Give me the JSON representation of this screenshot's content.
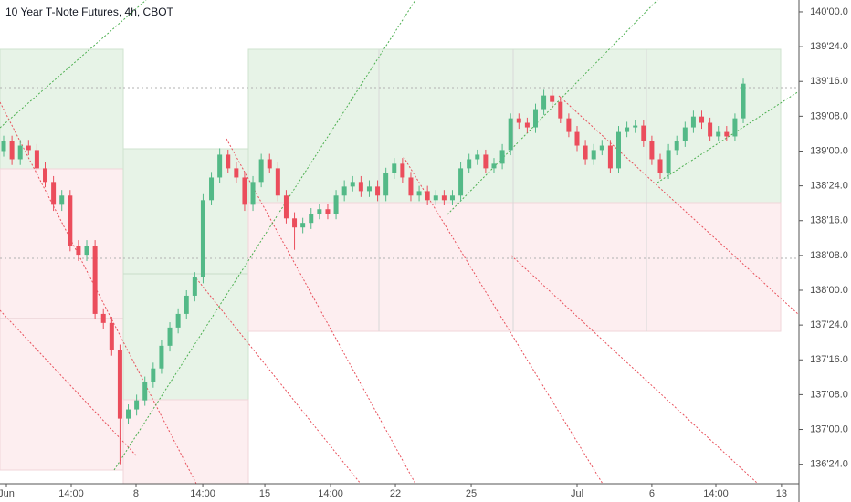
{
  "chart_data": {
    "type": "candlestick",
    "title": "10 Year T-Note Futures, 4h, CBOT",
    "up_color": "#53b987",
    "down_color": "#eb4d5c",
    "grid": false,
    "xlim": [
      -0.44,
      95.7
    ],
    "xticks": [
      {
        "value": 0.33,
        "label": "Jun"
      },
      {
        "value": 8.13,
        "label": "14:00"
      },
      {
        "value": 15.93,
        "label": "8"
      },
      {
        "value": 23.96,
        "label": "14:00"
      },
      {
        "value": 31.43,
        "label": "15"
      },
      {
        "value": 39.34,
        "label": "14:00"
      },
      {
        "value": 47.14,
        "label": "22"
      },
      {
        "value": 56.26,
        "label": "25"
      },
      {
        "value": 69.0,
        "label": "Jul"
      },
      {
        "value": 78.0,
        "label": "6"
      },
      {
        "value": 85.7,
        "label": "14:00"
      },
      {
        "value": 93.6,
        "label": "13"
      }
    ],
    "ylim": [
      136.61,
      140.085
    ],
    "yticks": [
      {
        "value": 140.0,
        "label": "140'00.0"
      },
      {
        "value": 139.75,
        "label": "139'24.0"
      },
      {
        "value": 139.5,
        "label": "139'16.0"
      },
      {
        "value": 139.25,
        "label": "139'08.0"
      },
      {
        "value": 139.0,
        "label": "139'00.0"
      },
      {
        "value": 138.75,
        "label": "138'24.0"
      },
      {
        "value": 138.5,
        "label": "138'16.0"
      },
      {
        "value": 138.25,
        "label": "138'08.0"
      },
      {
        "value": 138.0,
        "label": "138'00.0"
      },
      {
        "value": 137.75,
        "label": "137'24.0"
      },
      {
        "value": 137.5,
        "label": "137'16.0"
      },
      {
        "value": 137.25,
        "label": "137'08.0"
      },
      {
        "value": 137.0,
        "label": "137'00.0"
      },
      {
        "value": 136.75,
        "label": "136'24.0"
      }
    ],
    "open": [
      139.0,
      139.072,
      138.941,
      139.039,
      139.007,
      138.876,
      138.778,
      138.614,
      138.68,
      138.32,
      138.255,
      138.32,
      137.83,
      137.765,
      137.569,
      137.078,
      137.144,
      137.209,
      137.34,
      137.438,
      137.601,
      137.732,
      137.83,
      137.961,
      138.092,
      138.647,
      138.81,
      138.974,
      138.876,
      138.81,
      138.614,
      138.778,
      138.941,
      138.876,
      138.68,
      138.516,
      138.451,
      138.484,
      138.549,
      138.582,
      138.549,
      138.68,
      138.745,
      138.778,
      138.712,
      138.745,
      138.68,
      138.843,
      138.909,
      138.81,
      138.68,
      138.712,
      138.647,
      138.68,
      138.647,
      138.68,
      138.876,
      138.941,
      138.974,
      138.876,
      138.909,
      139.007,
      139.235,
      139.203,
      139.17,
      139.301,
      139.399,
      139.353,
      139.235,
      139.137,
      139.039,
      138.941,
      139.007,
      139.039,
      138.876,
      139.137,
      139.17,
      139.183,
      139.072,
      138.941,
      138.843,
      139.007,
      139.072,
      139.17,
      139.248,
      139.203,
      139.105,
      139.137,
      139.105,
      139.235
    ],
    "high": [
      139.11,
      139.11,
      139.08,
      139.08,
      139.05,
      138.92,
      138.82,
      138.72,
      138.72,
      138.36,
      138.36,
      138.36,
      137.87,
      137.81,
      137.61,
      137.18,
      137.25,
      137.38,
      137.48,
      137.64,
      137.77,
      137.87,
      138.0,
      138.13,
      138.69,
      138.85,
      139.02,
      139.01,
      138.92,
      138.85,
      138.82,
      138.98,
      138.98,
      138.92,
      138.72,
      138.56,
      138.52,
      138.59,
      138.62,
      138.62,
      138.72,
      138.79,
      138.82,
      138.82,
      138.79,
      138.79,
      138.88,
      138.95,
      138.95,
      138.85,
      138.75,
      138.75,
      138.72,
      138.72,
      138.72,
      138.92,
      138.98,
      139.01,
      139.01,
      138.95,
      139.05,
      139.27,
      139.27,
      139.24,
      139.34,
      139.44,
      139.44,
      139.39,
      139.27,
      139.18,
      139.08,
      139.05,
      139.08,
      139.08,
      139.18,
      139.21,
      139.22,
      139.22,
      139.11,
      138.98,
      139.05,
      139.11,
      139.21,
      139.29,
      139.29,
      139.24,
      139.18,
      139.18,
      139.27,
      139.52
    ],
    "low": [
      138.96,
      138.9,
      138.9,
      138.97,
      138.84,
      138.74,
      138.57,
      138.57,
      138.28,
      138.21,
      138.21,
      137.79,
      137.72,
      137.53,
      136.75,
      137.04,
      137.1,
      137.17,
      137.3,
      137.4,
      137.56,
      137.69,
      137.79,
      137.92,
      138.05,
      138.61,
      138.77,
      138.84,
      138.77,
      138.57,
      138.57,
      138.74,
      138.84,
      138.64,
      138.48,
      138.29,
      138.41,
      138.44,
      138.51,
      138.51,
      138.51,
      138.64,
      138.71,
      138.67,
      138.67,
      138.64,
      138.64,
      138.8,
      138.77,
      138.64,
      138.64,
      138.61,
      138.61,
      138.61,
      138.61,
      138.64,
      138.84,
      138.9,
      138.84,
      138.84,
      138.87,
      138.97,
      139.16,
      139.13,
      139.13,
      139.26,
      139.31,
      139.2,
      139.1,
      139.0,
      138.9,
      138.9,
      138.97,
      138.84,
      138.84,
      139.1,
      139.13,
      139.03,
      138.9,
      138.8,
      138.8,
      138.97,
      139.03,
      139.13,
      139.16,
      139.07,
      139.07,
      139.07,
      139.07,
      139.2
    ],
    "close": [
      139.072,
      138.941,
      139.039,
      139.007,
      138.876,
      138.778,
      138.614,
      138.68,
      138.32,
      138.255,
      138.32,
      137.83,
      137.765,
      137.569,
      137.078,
      137.144,
      137.209,
      137.34,
      137.438,
      137.601,
      137.732,
      137.83,
      137.961,
      138.092,
      138.647,
      138.81,
      138.974,
      138.876,
      138.81,
      138.614,
      138.778,
      138.941,
      138.876,
      138.68,
      138.516,
      138.451,
      138.484,
      138.549,
      138.582,
      138.549,
      138.68,
      138.745,
      138.778,
      138.712,
      138.745,
      138.68,
      138.843,
      138.909,
      138.81,
      138.68,
      138.712,
      138.647,
      138.68,
      138.647,
      138.68,
      138.876,
      138.941,
      138.974,
      138.876,
      138.909,
      139.007,
      139.235,
      139.203,
      139.17,
      139.301,
      139.399,
      139.353,
      139.235,
      139.137,
      139.039,
      138.941,
      139.007,
      139.039,
      138.876,
      139.137,
      139.17,
      139.183,
      139.072,
      138.941,
      138.843,
      139.007,
      139.072,
      139.17,
      139.248,
      139.203,
      139.105,
      139.137,
      139.105,
      139.235,
      139.484
    ]
  }
}
